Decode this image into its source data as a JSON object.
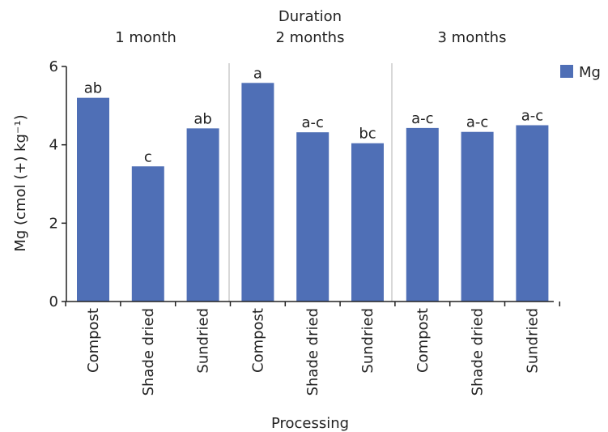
{
  "chart_data": {
    "type": "bar",
    "xlabel": "Processing",
    "ylabel": "Mg (cmol (+) kg⁻¹)",
    "group_axis_label": "Duration",
    "groups": [
      "1 month",
      "2 months",
      "3 months"
    ],
    "categories": [
      "Compost",
      "Shade dried",
      "Sundried",
      "Compost",
      "Shade dried",
      "Sundried",
      "Compost",
      "Shade dried",
      "Sundried"
    ],
    "series": [
      {
        "name": "Mg",
        "values": [
          5.2,
          3.45,
          4.42,
          5.58,
          4.32,
          4.04,
          4.43,
          4.33,
          4.5
        ],
        "labels": [
          "ab",
          "c",
          "ab",
          "a",
          "a-c",
          "bc",
          "a-c",
          "a-c",
          "a-c"
        ]
      }
    ],
    "yticks": [
      0,
      2,
      4,
      6
    ],
    "ylim": [
      0,
      6
    ],
    "grid": false,
    "legend_position": "top-right",
    "colors": {
      "bar": "#4f6fb6",
      "divider": "#cccccc",
      "axis": "#222222"
    }
  }
}
